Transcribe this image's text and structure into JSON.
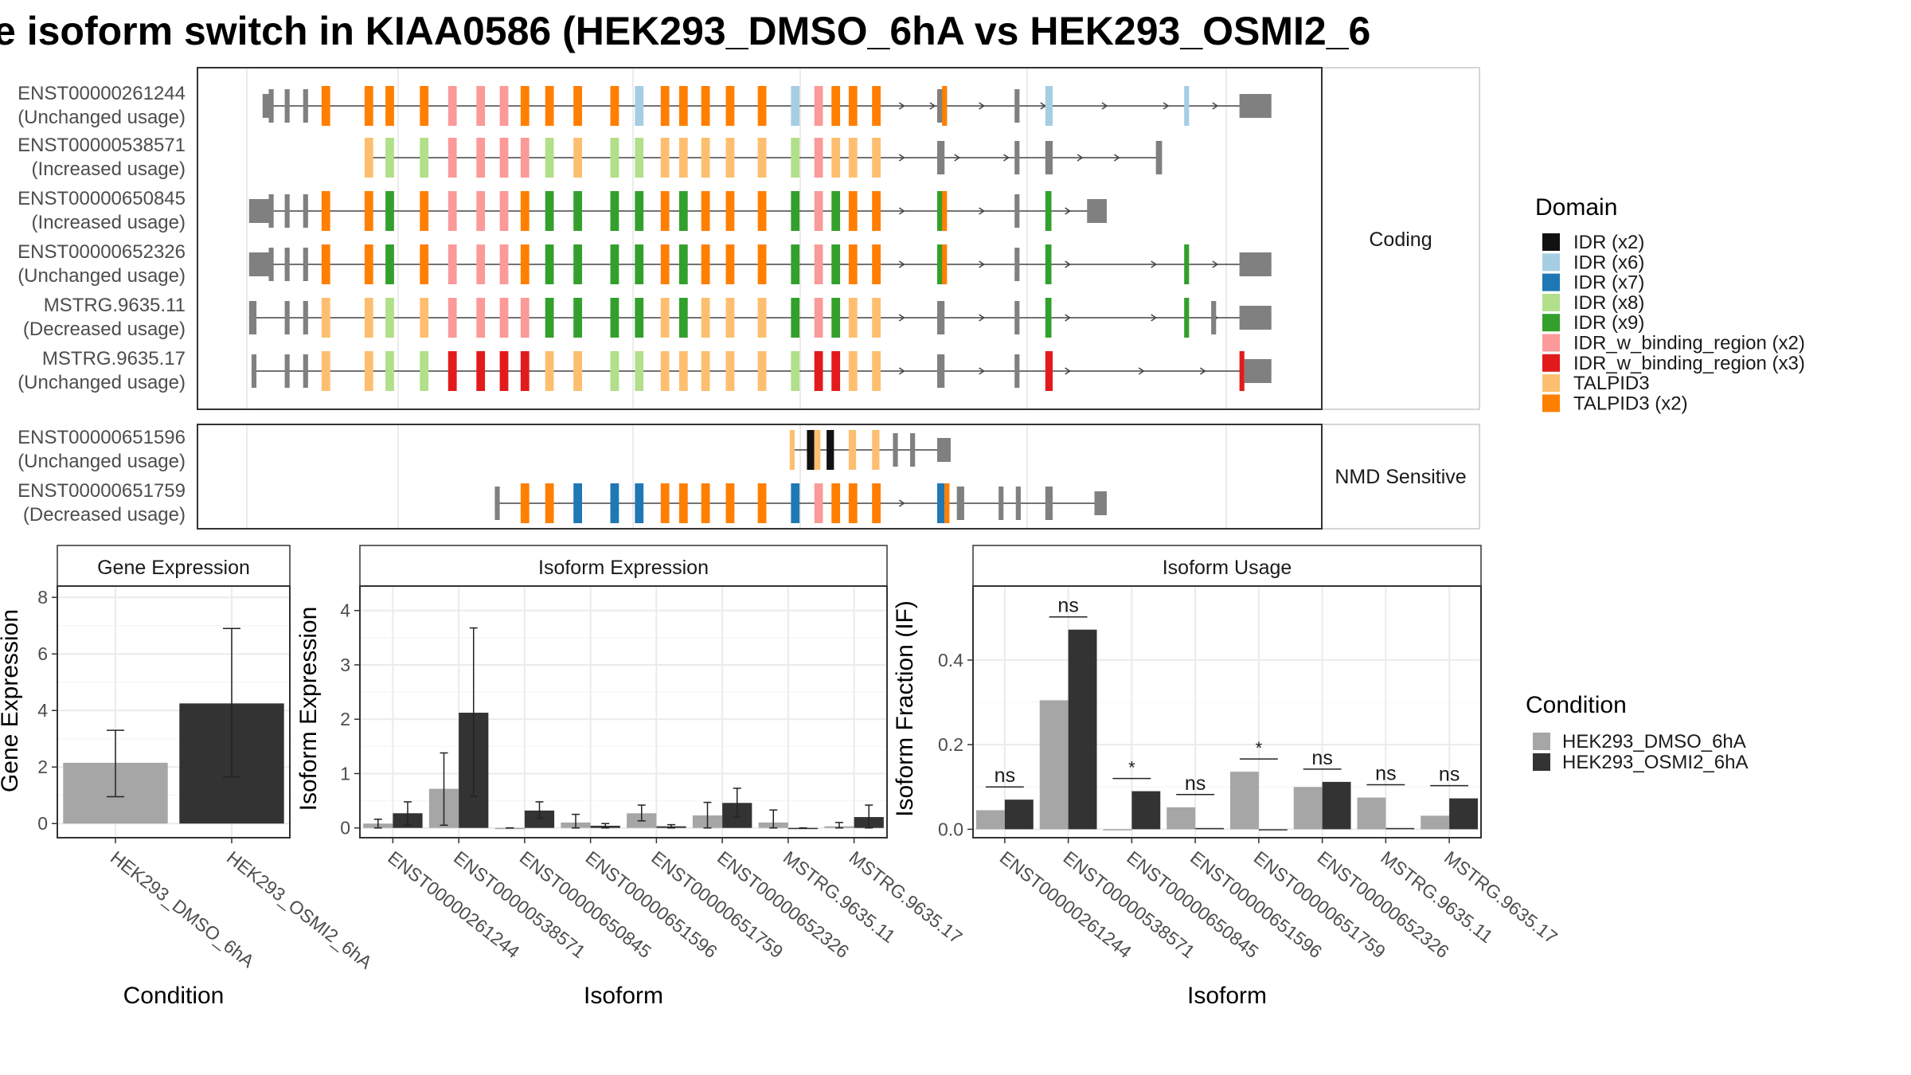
{
  "title": "e isoform switch in KIAA0586 (HEK293_DMSO_6hA vs HEK293_OSMI2_6",
  "colors": {
    "intron": "#444444",
    "exon_grey": "#808080",
    "dmso": "#a6a6a6",
    "osmi": "#333333"
  },
  "structure": {
    "facets": [
      {
        "label": "Coding",
        "transcripts": [
          {
            "id": "ENST00000261244",
            "usage": "(Unchanged usage)",
            "key": "t1"
          },
          {
            "id": "ENST00000538571",
            "usage": "(Increased usage)",
            "key": "t2"
          },
          {
            "id": "ENST00000650845",
            "usage": "(Increased usage)",
            "key": "t3"
          },
          {
            "id": "ENST00000652326",
            "usage": "(Unchanged usage)",
            "key": "t4"
          },
          {
            "id": "MSTRG.9635.11",
            "usage": "(Decreased usage)",
            "key": "t5"
          },
          {
            "id": "MSTRG.9635.17",
            "usage": "(Unchanged usage)",
            "key": "t6"
          }
        ]
      },
      {
        "label": "NMD Sensitive",
        "transcripts": [
          {
            "id": "ENST00000651596",
            "usage": "(Unchanged usage)",
            "key": "t7"
          },
          {
            "id": "ENST00000651759",
            "usage": "(Decreased usage)",
            "key": "t8"
          }
        ]
      }
    ]
  },
  "domain_legend": {
    "title": "Domain",
    "items": [
      {
        "label": "IDR (x2)",
        "color": "#111111"
      },
      {
        "label": "IDR (x6)",
        "color": "#a6cee3"
      },
      {
        "label": "IDR (x7)",
        "color": "#1f78b4"
      },
      {
        "label": "IDR (x8)",
        "color": "#b2df8a"
      },
      {
        "label": "IDR (x9)",
        "color": "#33a02c"
      },
      {
        "label": "IDR_w_binding_region (x2)",
        "color": "#fb9a99"
      },
      {
        "label": "IDR_w_binding_region (x3)",
        "color": "#e31a1c"
      },
      {
        "label": "TALPID3",
        "color": "#fdbf6f"
      },
      {
        "label": "TALPID3 (x2)",
        "color": "#ff7f00"
      }
    ]
  },
  "condition_legend": {
    "title": "Condition",
    "items": [
      {
        "label": "HEK293_DMSO_6hA",
        "color": "#a6a6a6"
      },
      {
        "label": "HEK293_OSMI2_6hA",
        "color": "#333333"
      }
    ]
  },
  "chart_data": [
    {
      "type": "bar",
      "title": "Gene Expression",
      "xlabel": "Condition",
      "ylabel": "Gene Expression",
      "ylim": [
        -0.5,
        8.4
      ],
      "yticks": [
        0,
        2,
        4,
        6,
        8
      ],
      "categories": [
        "HEK293_DMSO_6hA",
        "HEK293_OSMI2_6hA"
      ],
      "values": [
        2.15,
        4.25
      ],
      "error_low": [
        0.95,
        1.65
      ],
      "error_high": [
        3.3,
        6.9
      ]
    },
    {
      "type": "bar",
      "title": "Isoform Expression",
      "xlabel": "Isoform",
      "ylabel": "Isoform Expression",
      "ylim": [
        -0.18,
        4.45
      ],
      "yticks": [
        0,
        1,
        2,
        3,
        4
      ],
      "categories": [
        "ENST00000261244",
        "ENST00000538571",
        "ENST00000650845",
        "ENST00000651596",
        "ENST00000651759",
        "ENST00000652326",
        "MSTRG.9635.11",
        "MSTRG.9635.17"
      ],
      "series": [
        {
          "name": "HEK293_DMSO_6hA",
          "values": [
            0.08,
            0.72,
            0.0,
            0.1,
            0.27,
            0.23,
            0.1,
            0.03
          ],
          "error_low": [
            0.0,
            0.05,
            0.0,
            0.0,
            0.13,
            0.0,
            0.0,
            0.0
          ],
          "error_high": [
            0.16,
            1.38,
            0.0,
            0.25,
            0.42,
            0.47,
            0.33,
            0.1
          ]
        },
        {
          "name": "HEK293_OSMI2_6hA",
          "values": [
            0.27,
            2.12,
            0.32,
            0.04,
            0.03,
            0.46,
            0.0,
            0.2
          ],
          "error_low": [
            0.05,
            0.58,
            0.18,
            0.0,
            0.0,
            0.2,
            0.0,
            0.0
          ],
          "error_high": [
            0.48,
            3.68,
            0.48,
            0.08,
            0.06,
            0.73,
            0.0,
            0.42
          ]
        }
      ]
    },
    {
      "type": "bar",
      "title": "Isoform Usage",
      "xlabel": "Isoform",
      "ylabel": "Isoform Fraction (IF)",
      "ylim": [
        -0.02,
        0.575
      ],
      "yticks": [
        0.0,
        0.2,
        0.4
      ],
      "categories": [
        "ENST00000261244",
        "ENST00000538571",
        "ENST00000650845",
        "ENST00000651596",
        "ENST00000651759",
        "ENST00000652326",
        "MSTRG.9635.11",
        "MSTRG.9635.17"
      ],
      "series": [
        {
          "name": "HEK293_DMSO_6hA",
          "values": [
            0.045,
            0.305,
            0.0,
            0.052,
            0.136,
            0.1,
            0.075,
            0.032
          ]
        },
        {
          "name": "HEK293_OSMI2_6hA",
          "values": [
            0.07,
            0.472,
            0.09,
            0.003,
            0.0,
            0.112,
            0.003,
            0.073
          ]
        }
      ],
      "significance": [
        "ns",
        "ns",
        "*",
        "ns",
        "*",
        "ns",
        "ns",
        "ns"
      ]
    }
  ]
}
